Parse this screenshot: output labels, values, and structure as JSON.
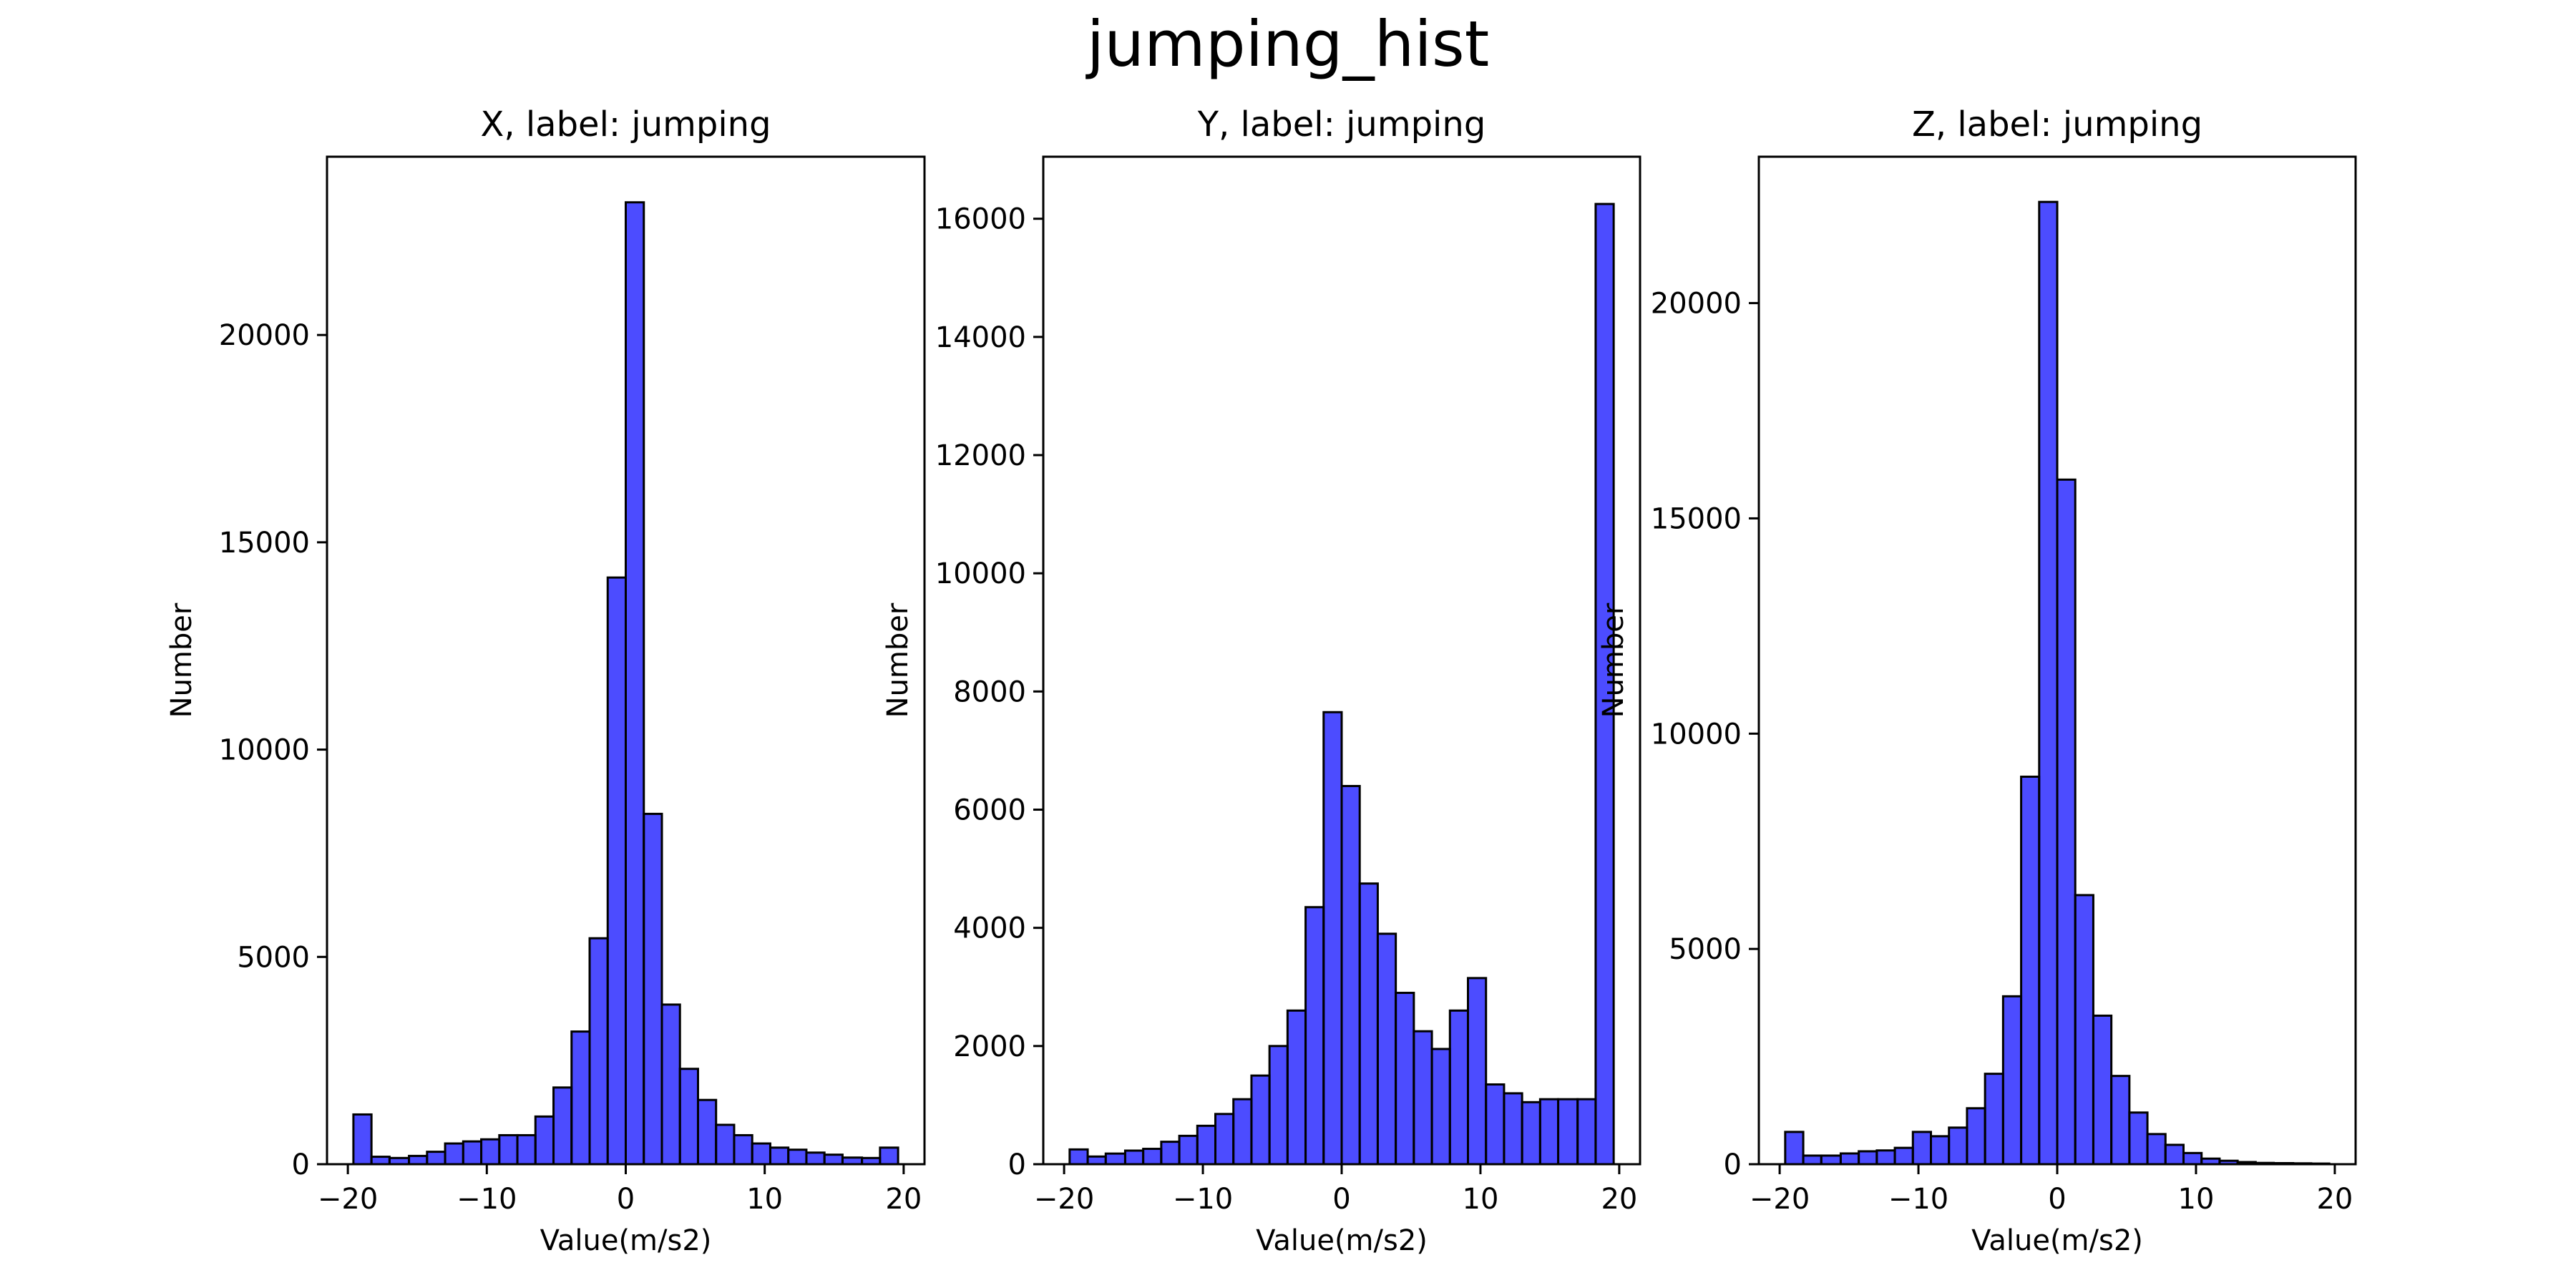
{
  "figure": {
    "title": "jumping_hist"
  },
  "style": {
    "bar_fill": "#0000ff",
    "bar_fill_opacity": 0.7,
    "bar_edge": "#000000"
  },
  "chart_data": [
    {
      "type": "bar",
      "title": "X, label: jumping",
      "xlabel": "Value(m/s2)",
      "ylabel": "Number",
      "xlim": [
        -21.5,
        21.5
      ],
      "ylim": [
        0,
        24300
      ],
      "xticks": [
        -20,
        -10,
        0,
        10,
        20
      ],
      "xtick_labels": [
        "−20",
        "−10",
        "0",
        "10",
        "20"
      ],
      "yticks": [
        0,
        5000,
        10000,
        15000,
        20000
      ],
      "ytick_labels": [
        "0",
        "5000",
        "10000",
        "15000",
        "20000"
      ],
      "bin_edges": [
        -19.6,
        -18.3,
        -17.0,
        -15.6,
        -14.3,
        -13.0,
        -11.7,
        -10.4,
        -9.1,
        -7.8,
        -6.5,
        -5.2,
        -3.9,
        -2.6,
        -1.3,
        0.0,
        1.3,
        2.6,
        3.9,
        5.2,
        6.5,
        7.8,
        9.1,
        10.4,
        11.7,
        13.0,
        14.3,
        15.6,
        17.0,
        18.3,
        19.6
      ],
      "values": [
        1200,
        180,
        150,
        200,
        300,
        500,
        550,
        600,
        700,
        700,
        1150,
        1850,
        3200,
        5450,
        14150,
        23200,
        8450,
        3850,
        2300,
        1550,
        950,
        700,
        500,
        400,
        350,
        280,
        230,
        160,
        150,
        400
      ]
    },
    {
      "type": "bar",
      "title": "Y, label: jumping",
      "xlabel": "Value(m/s2)",
      "ylabel": "Number",
      "xlim": [
        -21.5,
        21.5
      ],
      "ylim": [
        0,
        17050
      ],
      "xticks": [
        -20,
        -10,
        0,
        10,
        20
      ],
      "xtick_labels": [
        "−20",
        "−10",
        "0",
        "10",
        "20"
      ],
      "yticks": [
        0,
        2000,
        4000,
        6000,
        8000,
        10000,
        12000,
        14000,
        16000
      ],
      "ytick_labels": [
        "0",
        "2000",
        "4000",
        "6000",
        "8000",
        "10000",
        "12000",
        "14000",
        "16000"
      ],
      "bin_edges": [
        -19.6,
        -18.3,
        -17.0,
        -15.6,
        -14.3,
        -13.0,
        -11.7,
        -10.4,
        -9.1,
        -7.8,
        -6.5,
        -5.2,
        -3.9,
        -2.6,
        -1.3,
        0.0,
        1.3,
        2.6,
        3.9,
        5.2,
        6.5,
        7.8,
        9.1,
        10.4,
        11.7,
        13.0,
        14.3,
        15.6,
        17.0,
        18.3,
        19.6
      ],
      "values": [
        250,
        130,
        180,
        230,
        260,
        380,
        480,
        650,
        850,
        1100,
        1500,
        2000,
        2600,
        4350,
        7650,
        6400,
        4750,
        3900,
        2900,
        2250,
        1950,
        2600,
        3150,
        1350,
        1200,
        1050,
        1100,
        1100,
        1100,
        16250
      ]
    },
    {
      "type": "bar",
      "title": "Z, label: jumping",
      "xlabel": "Value(m/s2)",
      "ylabel": "Number",
      "xlim": [
        -21.5,
        21.5
      ],
      "ylim": [
        0,
        23400
      ],
      "xticks": [
        -20,
        -10,
        0,
        10,
        20
      ],
      "xtick_labels": [
        "−20",
        "−10",
        "0",
        "10",
        "20"
      ],
      "yticks": [
        0,
        5000,
        10000,
        15000,
        20000
      ],
      "ytick_labels": [
        "0",
        "5000",
        "10000",
        "15000",
        "20000"
      ],
      "bin_edges": [
        -19.6,
        -18.3,
        -17.0,
        -15.6,
        -14.3,
        -13.0,
        -11.7,
        -10.4,
        -9.1,
        -7.8,
        -6.5,
        -5.2,
        -3.9,
        -2.6,
        -1.3,
        0.0,
        1.3,
        2.6,
        3.9,
        5.2,
        6.5,
        7.8,
        9.1,
        10.4,
        11.7,
        13.0,
        14.3,
        15.6,
        17.0,
        18.3,
        19.6
      ],
      "values": [
        750,
        200,
        200,
        250,
        300,
        320,
        380,
        750,
        650,
        850,
        1300,
        2100,
        3900,
        9000,
        22350,
        15900,
        6250,
        3450,
        2050,
        1200,
        700,
        450,
        260,
        130,
        80,
        50,
        30,
        25,
        20,
        15
      ]
    }
  ]
}
